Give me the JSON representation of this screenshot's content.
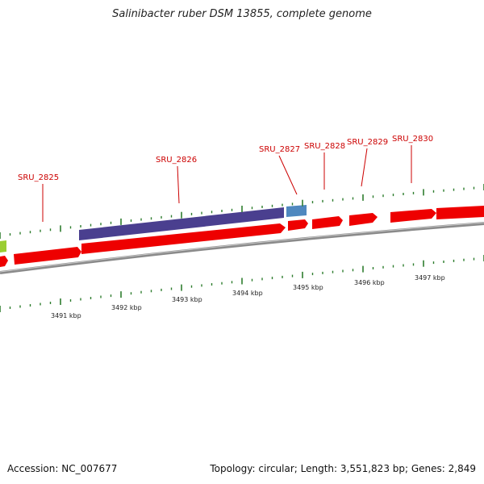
{
  "title": "Salinibacter ruber DSM 13855, complete genome",
  "footer": {
    "accession": "Accession: NC_007677",
    "summary": "Topology: circular; Length: 3,551,823 bp; Genes: 2,849"
  },
  "colors": {
    "forward_gene": "#ee0000",
    "reverse_gene": "#4a3f8f",
    "rna_gene": "#4f88bf",
    "other_gene": "#9acd32",
    "backbone": "#8a8a8a",
    "tick": "#2e7d2e",
    "gene_label": "#cc0000"
  },
  "genes": [
    {
      "label": "SRU_2825",
      "strand": "+",
      "type": "CDS"
    },
    {
      "label": "SRU_2826",
      "strand": "-",
      "type": "CDS"
    },
    {
      "label": "SRU_2827",
      "strand": "-",
      "type": "RNA"
    },
    {
      "label": "SRU_2828",
      "strand": "+",
      "type": "CDS"
    },
    {
      "label": "SRU_2829",
      "strand": "+",
      "type": "CDS"
    },
    {
      "label": "SRU_2830",
      "strand": "+",
      "type": "CDS"
    }
  ],
  "scale_labels": [
    "3491 kbp",
    "3492 kbp",
    "3493 kbp",
    "3494 kbp",
    "3495 kbp",
    "3496 kbp",
    "3497 kbp"
  ]
}
